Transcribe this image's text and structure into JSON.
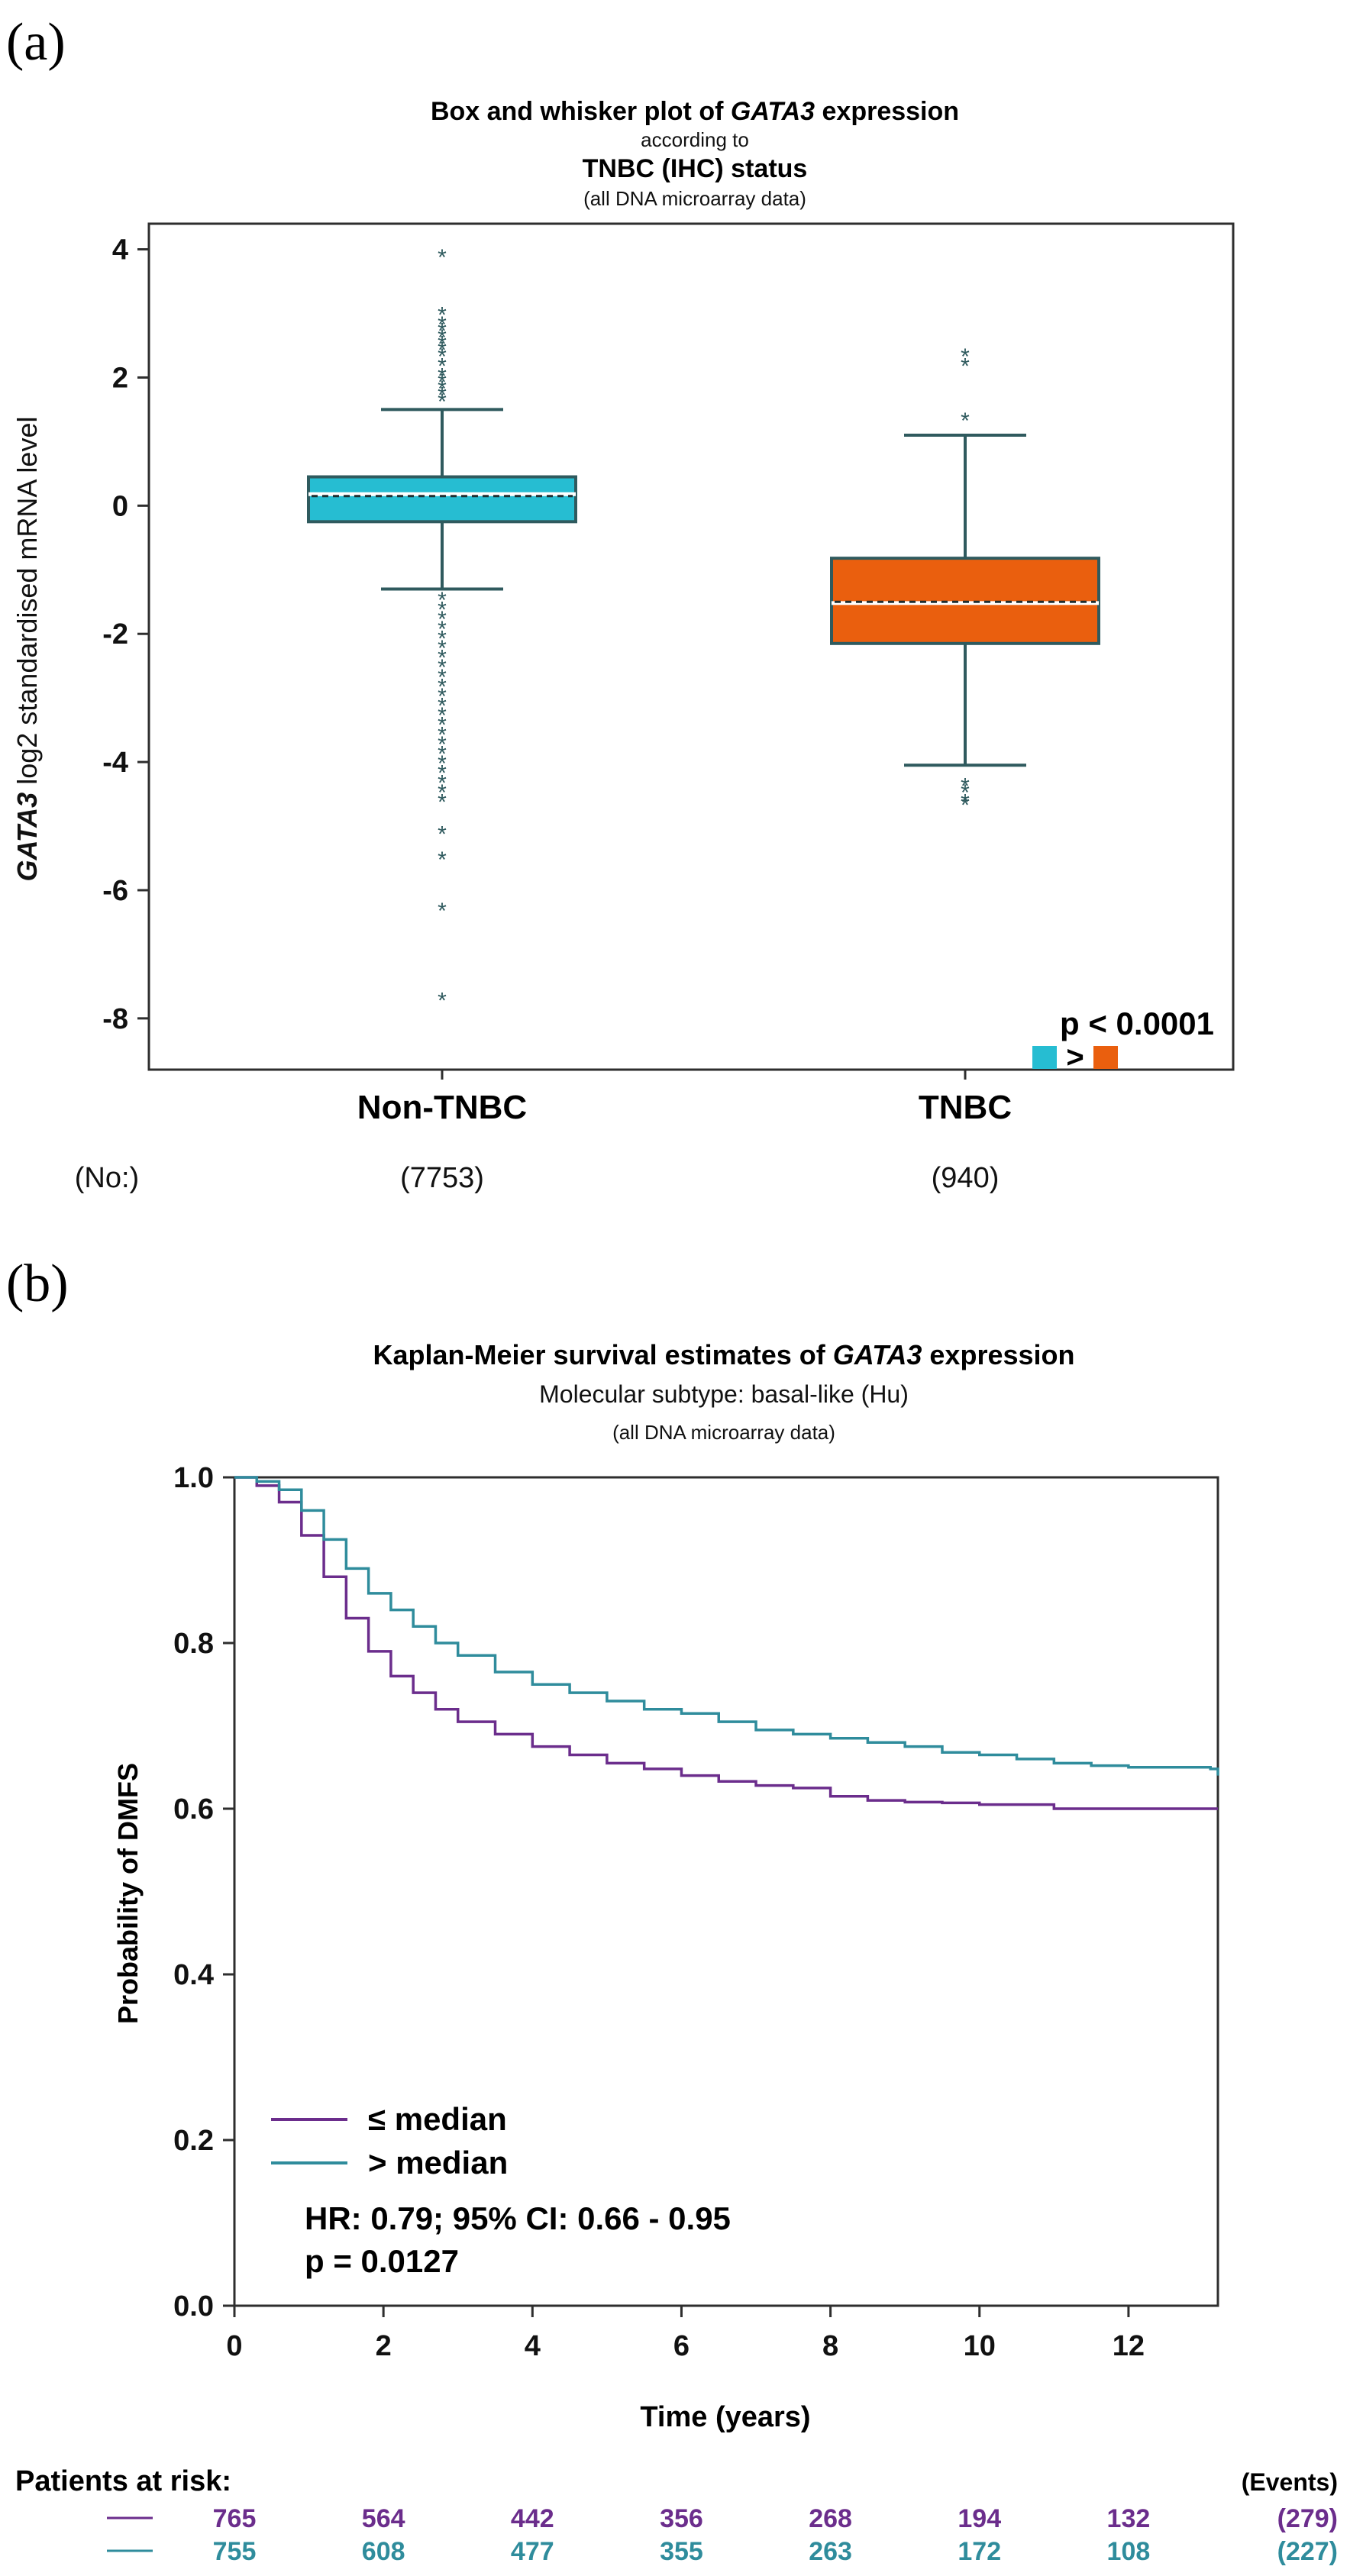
{
  "panel_a": {
    "label": "(a)",
    "title_line1_pre": "Box and whisker plot of ",
    "title_line1_gene": "GATA3",
    "title_line1_post": " expression",
    "title_line2": "according to",
    "title_line3": "TNBC (IHC) status",
    "title_line4": "(all DNA microarray data)",
    "y_label_gene": "GATA3",
    "y_label_rest": " log2 standardised mRNA level",
    "p_value": "p < 0.0001",
    "comparison_symbol": ">",
    "no_label": "(No:)"
  },
  "panel_b": {
    "label": "(b)",
    "title_line1_pre": "Kaplan-Meier survival estimates of ",
    "title_line1_gene": "GATA3",
    "title_line1_post": " expression",
    "title_line2": "Molecular subtype: basal-like (Hu)",
    "title_line3": "(all DNA microarray data)",
    "legend_low": "≤ median",
    "legend_high": "> median",
    "hr_text": "HR: 0.79; 95% CI: 0.66 - 0.95",
    "p_text": "p = 0.0127",
    "risk_title": "Patients at risk:",
    "events_title": "(Events)"
  },
  "chart_data": [
    {
      "type": "box",
      "title": "Box and whisker plot of GATA3 expression according to TNBC (IHC) status (all DNA microarray data)",
      "ylabel": "GATA3 log2 standardised mRNA level",
      "ylim": [
        -8.8,
        4.4
      ],
      "yticks": [
        "4",
        "2",
        "0",
        "-2",
        "-4",
        "-6",
        "-8"
      ],
      "categories": [
        "Non-TNBC",
        "TNBC"
      ],
      "counts": [
        "(7753)",
        "(940)"
      ],
      "colors": [
        "#26bdd2",
        "#ea5f0e"
      ],
      "boxes": [
        {
          "name": "Non-TNBC",
          "whisker_low": -1.3,
          "q1": -0.25,
          "median": 0.18,
          "mean": 0.15,
          "q3": 0.45,
          "whisker_high": 1.5,
          "outliers": [
            3.9,
            3.0,
            2.85,
            2.75,
            2.65,
            2.55,
            2.45,
            2.35,
            2.2,
            2.05,
            1.95,
            1.85,
            1.75,
            1.65,
            -1.45,
            -1.6,
            -1.75,
            -1.9,
            -2.05,
            -2.2,
            -2.35,
            -2.5,
            -2.65,
            -2.8,
            -2.95,
            -3.1,
            -3.25,
            -3.4,
            -3.55,
            -3.7,
            -3.85,
            -4.0,
            -4.15,
            -4.3,
            -4.45,
            -4.6,
            -5.1,
            -5.5,
            -6.3,
            -7.7
          ]
        },
        {
          "name": "TNBC",
          "whisker_low": -4.05,
          "q1": -2.15,
          "median": -1.52,
          "mean": -1.5,
          "q3": -0.82,
          "whisker_high": 1.1,
          "outliers": [
            2.35,
            2.2,
            1.35,
            -4.35,
            -4.45,
            -4.6,
            -4.65
          ]
        }
      ]
    },
    {
      "type": "line",
      "title": "Kaplan-Meier survival estimates of GATA3 expression",
      "xlabel": "Time (years)",
      "ylabel": "Probability of DMFS",
      "xlim": [
        0,
        13.2
      ],
      "ylim": [
        0,
        1.0
      ],
      "xticks": [
        "0",
        "2",
        "4",
        "6",
        "8",
        "10",
        "12"
      ],
      "yticks": [
        "0.0",
        "0.2",
        "0.4",
        "0.6",
        "0.8",
        "1.0"
      ],
      "series": [
        {
          "name": "≤ median",
          "color": "#6b2d8c",
          "x": [
            0,
            0.3,
            0.6,
            0.9,
            1.2,
            1.5,
            1.8,
            2.1,
            2.4,
            2.7,
            3.0,
            3.5,
            4.0,
            4.5,
            5.0,
            5.5,
            6.0,
            6.5,
            7.0,
            7.5,
            8.0,
            8.5,
            9.0,
            9.5,
            10.0,
            10.5,
            11.0,
            11.5,
            12.0,
            12.5,
            13.2
          ],
          "y": [
            1.0,
            0.99,
            0.97,
            0.93,
            0.88,
            0.83,
            0.79,
            0.76,
            0.74,
            0.72,
            0.705,
            0.69,
            0.675,
            0.665,
            0.655,
            0.648,
            0.64,
            0.633,
            0.628,
            0.625,
            0.615,
            0.61,
            0.608,
            0.607,
            0.605,
            0.605,
            0.6,
            0.6,
            0.6,
            0.6,
            0.6
          ]
        },
        {
          "name": "> median",
          "color": "#2f8c9c",
          "x": [
            0,
            0.3,
            0.6,
            0.9,
            1.2,
            1.5,
            1.8,
            2.1,
            2.4,
            2.7,
            3.0,
            3.5,
            4.0,
            4.5,
            5.0,
            5.5,
            6.0,
            6.5,
            7.0,
            7.5,
            8.0,
            8.5,
            9.0,
            9.5,
            10.0,
            10.5,
            11.0,
            11.5,
            12.0,
            12.5,
            13.1,
            13.2
          ],
          "y": [
            1.0,
            0.995,
            0.985,
            0.96,
            0.925,
            0.89,
            0.86,
            0.84,
            0.82,
            0.8,
            0.785,
            0.765,
            0.75,
            0.74,
            0.73,
            0.72,
            0.715,
            0.705,
            0.695,
            0.69,
            0.685,
            0.68,
            0.675,
            0.668,
            0.665,
            0.66,
            0.655,
            0.652,
            0.65,
            0.65,
            0.648,
            0.64
          ]
        }
      ],
      "risk_table": {
        "rows": [
          {
            "color": "#6b2d8c",
            "counts": [
              "765",
              "564",
              "442",
              "356",
              "268",
              "194",
              "132"
            ],
            "events": "(279)"
          },
          {
            "color": "#2f8c9c",
            "counts": [
              "755",
              "608",
              "477",
              "355",
              "263",
              "172",
              "108"
            ],
            "events": "(227)"
          }
        ]
      }
    }
  ]
}
